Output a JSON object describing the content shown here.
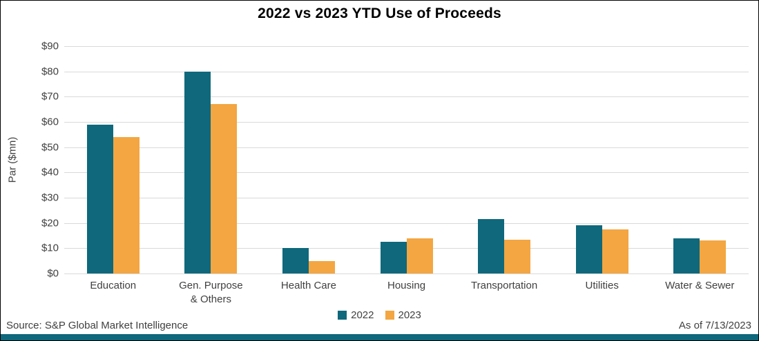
{
  "chart_data": {
    "type": "bar",
    "title": "2022 vs 2023 YTD Use of Proceeds",
    "categories": [
      "Education",
      "Gen. Purpose\n& Others",
      "Health Care",
      "Housing",
      "Transportation",
      "Utilities",
      "Water & Sewer"
    ],
    "series": [
      {
        "name": "2022",
        "color": "#0F687C",
        "values": [
          59,
          80,
          10,
          12.5,
          21.5,
          19,
          14
        ]
      },
      {
        "name": "2023",
        "color": "#F3A641",
        "values": [
          54,
          67,
          5,
          14,
          13.5,
          17.5,
          13
        ]
      }
    ],
    "xlabel": "",
    "ylabel": "Par ($mn)",
    "ylim": [
      0,
      90
    ],
    "ytick_values": [
      0,
      10,
      20,
      30,
      40,
      50,
      60,
      70,
      80,
      90
    ],
    "ytick_labels": [
      "$0",
      "$10",
      "$20",
      "$30",
      "$40",
      "$50",
      "$60",
      "$70",
      "$80",
      "$90"
    ],
    "grid": true,
    "legend_position": "bottom"
  },
  "colors": {
    "gridline": "#D9D9D9",
    "axis_text": "#404040",
    "accent_strip": "#0F687C"
  },
  "footer": {
    "source": "Source: S&P Global Market Intelligence",
    "as_of": "As of 7/13/2023"
  }
}
